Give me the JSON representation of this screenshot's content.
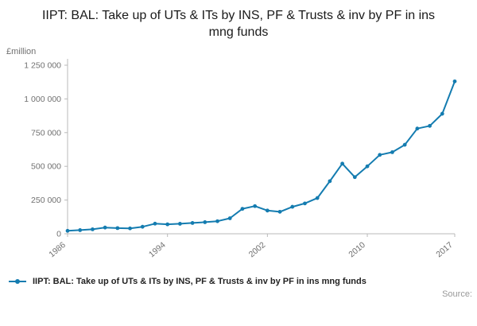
{
  "chart": {
    "title": "IIPT: BAL: Take up of UTs & ITs by INS, PF & Trusts & inv by PF in ins mng funds",
    "unit_label": "£million",
    "legend_label": "IIPT: BAL: Take up of UTs & ITs by INS, PF & Trusts & inv by PF in ins mng funds",
    "source_label": "Source:",
    "line_color": "#147cb0",
    "axis_color": "#b9b9b9",
    "tick_text_color": "#707070"
  },
  "chart_data": {
    "type": "line",
    "title": "IIPT: BAL: Take up of UTs & ITs by INS, PF & Trusts & inv by PF in ins mng funds",
    "xlabel": "",
    "ylabel": "£million",
    "x": [
      1986,
      1987,
      1988,
      1989,
      1990,
      1991,
      1992,
      1993,
      1994,
      1995,
      1996,
      1997,
      1998,
      1999,
      2000,
      2001,
      2002,
      2003,
      2004,
      2005,
      2006,
      2007,
      2008,
      2009,
      2010,
      2011,
      2012,
      2013,
      2014,
      2015,
      2016,
      2017
    ],
    "values": [
      22000,
      27000,
      33000,
      46000,
      42000,
      40000,
      52000,
      75000,
      70000,
      74000,
      80000,
      86000,
      93000,
      115000,
      185000,
      205000,
      172000,
      163000,
      200000,
      225000,
      265000,
      390000,
      520000,
      420000,
      500000,
      585000,
      605000,
      660000,
      780000,
      800000,
      890000,
      1130000
    ],
    "ylim": [
      0,
      1250000
    ],
    "ytick_step": 250000,
    "yticks_labels": [
      "0",
      "250 000",
      "500 000",
      "750 000",
      "1 000 000",
      "1 250 000"
    ],
    "xticks": [
      1986,
      1994,
      2002,
      2010,
      2017
    ],
    "grid": false,
    "marker": "circle",
    "legend_position": "bottom-left"
  }
}
